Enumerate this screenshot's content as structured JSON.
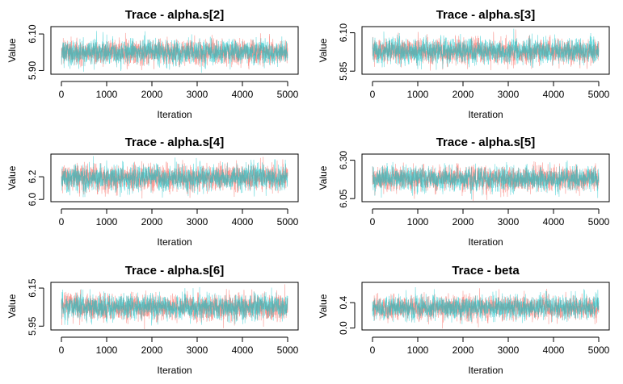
{
  "chart_data": [
    {
      "type": "line",
      "title": "Trace - alpha.s[2]",
      "xlabel": "Iteration",
      "ylabel": "Value",
      "xlim": [
        0,
        5000
      ],
      "ylim": [
        5.88,
        6.14
      ],
      "xticks": [
        0,
        1000,
        2000,
        3000,
        4000,
        5000
      ],
      "yticks": [
        "5.90",
        "6.10"
      ],
      "grid": false,
      "n_iterations": 5000,
      "series": [
        {
          "mean": 6.0,
          "sd": 0.032,
          "color": "#F8766D"
        },
        {
          "mean": 6.0,
          "sd": 0.032,
          "color": "#00BFC4"
        }
      ]
    },
    {
      "type": "line",
      "title": "Trace - alpha.s[3]",
      "xlabel": "Iteration",
      "ylabel": "Value",
      "xlim": [
        0,
        5000
      ],
      "ylim": [
        5.83,
        6.14
      ],
      "xticks": [
        0,
        1000,
        2000,
        3000,
        4000,
        5000
      ],
      "yticks": [
        "5.85",
        "6.10"
      ],
      "grid": false,
      "n_iterations": 5000,
      "series": [
        {
          "mean": 5.98,
          "sd": 0.038,
          "color": "#F8766D"
        },
        {
          "mean": 5.98,
          "sd": 0.038,
          "color": "#00BFC4"
        }
      ]
    },
    {
      "type": "line",
      "title": "Trace - alpha.s[4]",
      "xlabel": "Iteration",
      "ylabel": "Value",
      "xlim": [
        0,
        5000
      ],
      "ylim": [
        5.98,
        6.4
      ],
      "xticks": [
        0,
        1000,
        2000,
        3000,
        4000,
        5000
      ],
      "yticks": [
        "6.0",
        "6.2"
      ],
      "grid": false,
      "n_iterations": 5000,
      "series": [
        {
          "mean": 6.19,
          "sd": 0.055,
          "color": "#F8766D"
        },
        {
          "mean": 6.19,
          "sd": 0.055,
          "color": "#00BFC4"
        }
      ]
    },
    {
      "type": "line",
      "title": "Trace - alpha.s[5]",
      "xlabel": "Iteration",
      "ylabel": "Value",
      "xlim": [
        0,
        5000
      ],
      "ylim": [
        6.03,
        6.34
      ],
      "xticks": [
        0,
        1000,
        2000,
        3000,
        4000,
        5000
      ],
      "yticks": [
        "6.05",
        "6.30"
      ],
      "grid": false,
      "n_iterations": 5000,
      "series": [
        {
          "mean": 6.18,
          "sd": 0.038,
          "color": "#F8766D"
        },
        {
          "mean": 6.18,
          "sd": 0.038,
          "color": "#00BFC4"
        }
      ]
    },
    {
      "type": "line",
      "title": "Trace - alpha.s[6]",
      "xlabel": "Iteration",
      "ylabel": "Value",
      "xlim": [
        0,
        5000
      ],
      "ylim": [
        5.93,
        6.18
      ],
      "xticks": [
        0,
        1000,
        2000,
        3000,
        4000,
        5000
      ],
      "yticks": [
        "5.95",
        "6.15"
      ],
      "grid": false,
      "n_iterations": 5000,
      "series": [
        {
          "mean": 6.05,
          "sd": 0.032,
          "color": "#F8766D"
        },
        {
          "mean": 6.05,
          "sd": 0.032,
          "color": "#00BFC4"
        }
      ]
    },
    {
      "type": "line",
      "title": "Trace - beta",
      "xlabel": "Iteration",
      "ylabel": "Value",
      "xlim": [
        0,
        5000
      ],
      "ylim": [
        -0.03,
        0.72
      ],
      "xticks": [
        0,
        1000,
        2000,
        3000,
        4000,
        5000
      ],
      "yticks": [
        "0.0",
        "0.4"
      ],
      "grid": false,
      "n_iterations": 5000,
      "series": [
        {
          "mean": 0.32,
          "sd": 0.09,
          "color": "#F8766D"
        },
        {
          "mean": 0.32,
          "sd": 0.09,
          "color": "#00BFC4"
        }
      ]
    }
  ]
}
